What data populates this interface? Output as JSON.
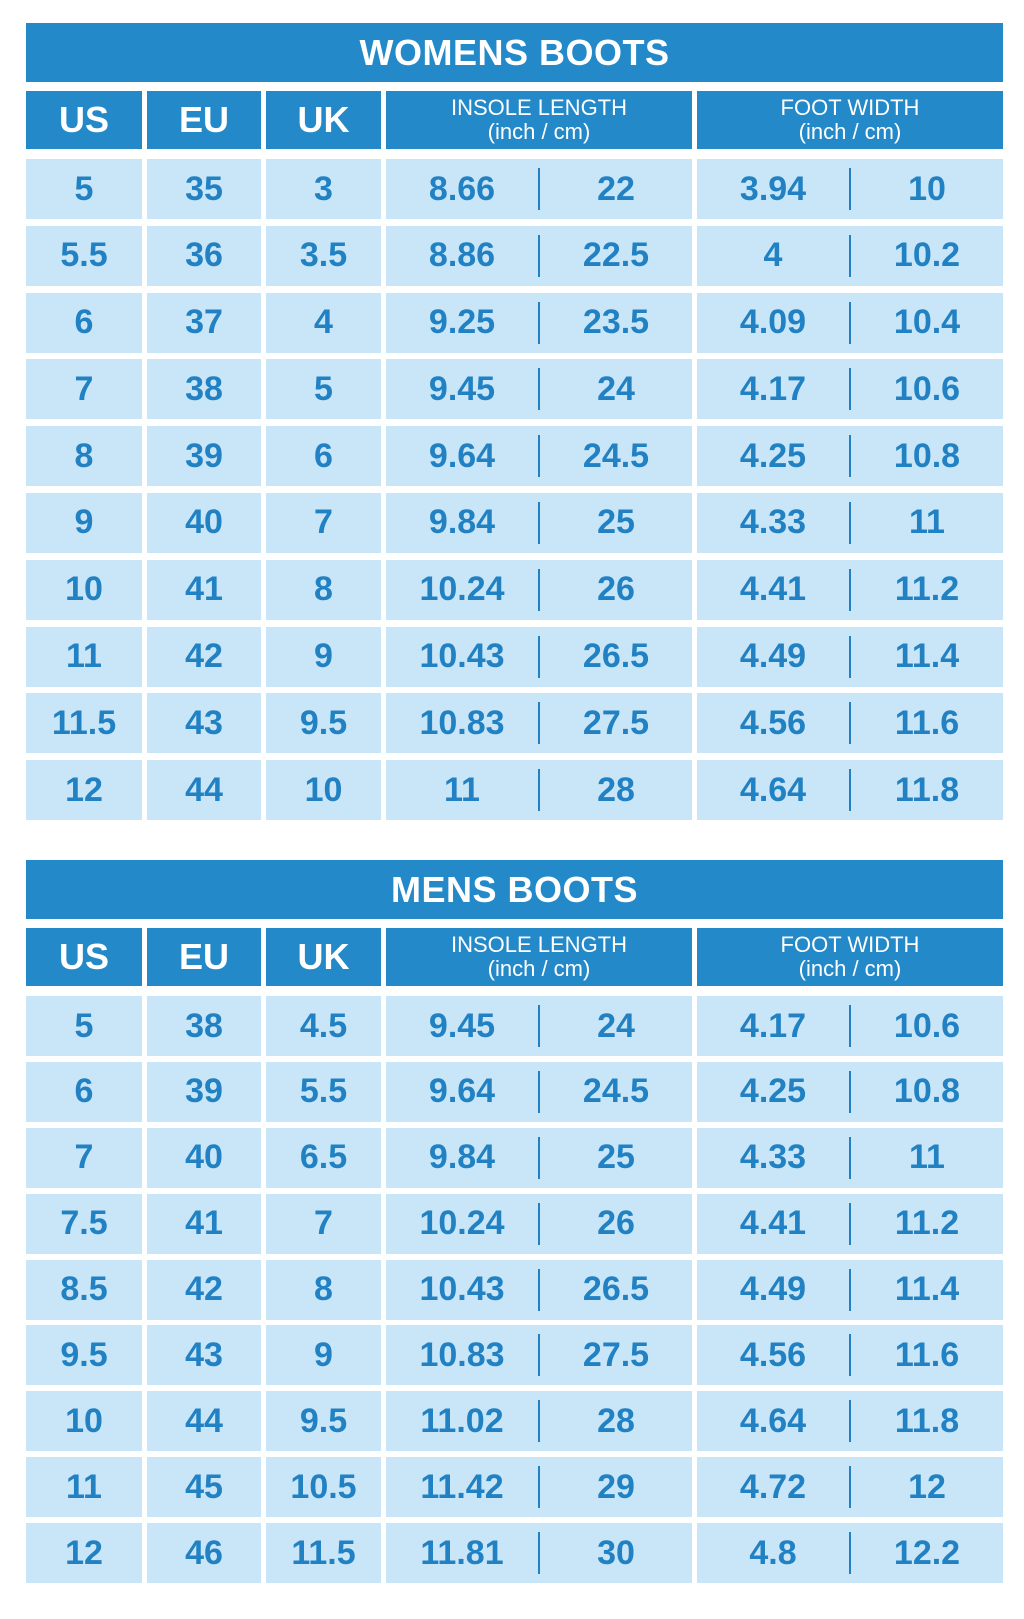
{
  "colors": {
    "header": "#2389c8",
    "cell": "#c8e6f8",
    "text": "#2181c2"
  },
  "headers": {
    "us": "US",
    "eu": "EU",
    "uk": "UK",
    "insole": "INSOLE LENGTH",
    "width": "FOOT WIDTH",
    "unit": "(inch / cm)"
  },
  "tables": [
    {
      "title": "WOMENS BOOTS",
      "rows": [
        [
          "5",
          "35",
          "3",
          "8.66",
          "22",
          "3.94",
          "10"
        ],
        [
          "5.5",
          "36",
          "3.5",
          "8.86",
          "22.5",
          "4",
          "10.2"
        ],
        [
          "6",
          "37",
          "4",
          "9.25",
          "23.5",
          "4.09",
          "10.4"
        ],
        [
          "7",
          "38",
          "5",
          "9.45",
          "24",
          "4.17",
          "10.6"
        ],
        [
          "8",
          "39",
          "6",
          "9.64",
          "24.5",
          "4.25",
          "10.8"
        ],
        [
          "9",
          "40",
          "7",
          "9.84",
          "25",
          "4.33",
          "11"
        ],
        [
          "10",
          "41",
          "8",
          "10.24",
          "26",
          "4.41",
          "11.2"
        ],
        [
          "11",
          "42",
          "9",
          "10.43",
          "26.5",
          "4.49",
          "11.4"
        ],
        [
          "11.5",
          "43",
          "9.5",
          "10.83",
          "27.5",
          "4.56",
          "11.6"
        ],
        [
          "12",
          "44",
          "10",
          "11",
          "28",
          "4.64",
          "11.8"
        ]
      ]
    },
    {
      "title": "MENS BOOTS",
      "rows": [
        [
          "5",
          "38",
          "4.5",
          "9.45",
          "24",
          "4.17",
          "10.6"
        ],
        [
          "6",
          "39",
          "5.5",
          "9.64",
          "24.5",
          "4.25",
          "10.8"
        ],
        [
          "7",
          "40",
          "6.5",
          "9.84",
          "25",
          "4.33",
          "11"
        ],
        [
          "7.5",
          "41",
          "7",
          "10.24",
          "26",
          "4.41",
          "11.2"
        ],
        [
          "8.5",
          "42",
          "8",
          "10.43",
          "26.5",
          "4.49",
          "11.4"
        ],
        [
          "9.5",
          "43",
          "9",
          "10.83",
          "27.5",
          "4.56",
          "11.6"
        ],
        [
          "10",
          "44",
          "9.5",
          "11.02",
          "28",
          "4.64",
          "11.8"
        ],
        [
          "11",
          "45",
          "10.5",
          "11.42",
          "29",
          "4.72",
          "12"
        ],
        [
          "12",
          "46",
          "11.5",
          "11.81",
          "30",
          "4.8",
          "12.2"
        ]
      ]
    }
  ]
}
